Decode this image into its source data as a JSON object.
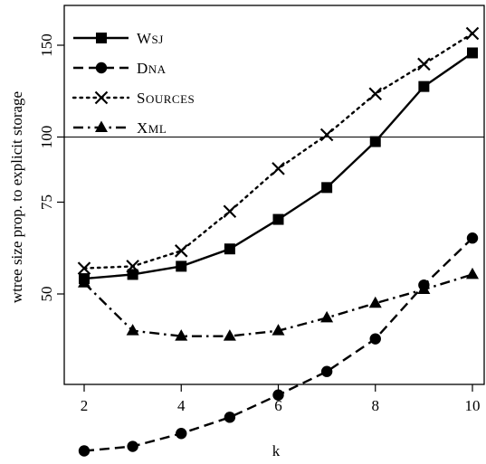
{
  "chart_data": {
    "type": "line",
    "title": "",
    "xlabel": "k",
    "ylabel": "wtree size prop. to explicit storage",
    "y_scale": "log",
    "x": [
      2,
      3,
      4,
      5,
      6,
      7,
      8,
      9,
      10
    ],
    "xticks": [
      "2",
      "4",
      "6",
      "8",
      "10"
    ],
    "xlim": [
      2,
      10
    ],
    "yticks": [
      "50",
      "75",
      "100",
      "150"
    ],
    "ylim": [
      23,
      175
    ],
    "reference_line": 100,
    "grid": false,
    "legend": "top-left",
    "series": [
      {
        "name": "Wsj",
        "line_style": "solid",
        "marker": "square",
        "values": [
          53.5,
          54.5,
          56.5,
          61,
          69.5,
          80,
          98,
          125,
          145
        ]
      },
      {
        "name": "Dna",
        "line_style": "dashed",
        "marker": "circle",
        "values": [
          25,
          25.5,
          27,
          29,
          32,
          35.5,
          41,
          52,
          64
        ]
      },
      {
        "name": "Sources",
        "line_style": "dotted",
        "marker": "x",
        "values": [
          56,
          56.5,
          60.5,
          72,
          87,
          101,
          121,
          138,
          158
        ]
      },
      {
        "name": "Xml",
        "line_style": "dashdot",
        "marker": "triangle",
        "values": [
          52.5,
          42.5,
          41.5,
          41.5,
          42.5,
          45,
          48,
          51,
          54.5
        ]
      }
    ]
  }
}
